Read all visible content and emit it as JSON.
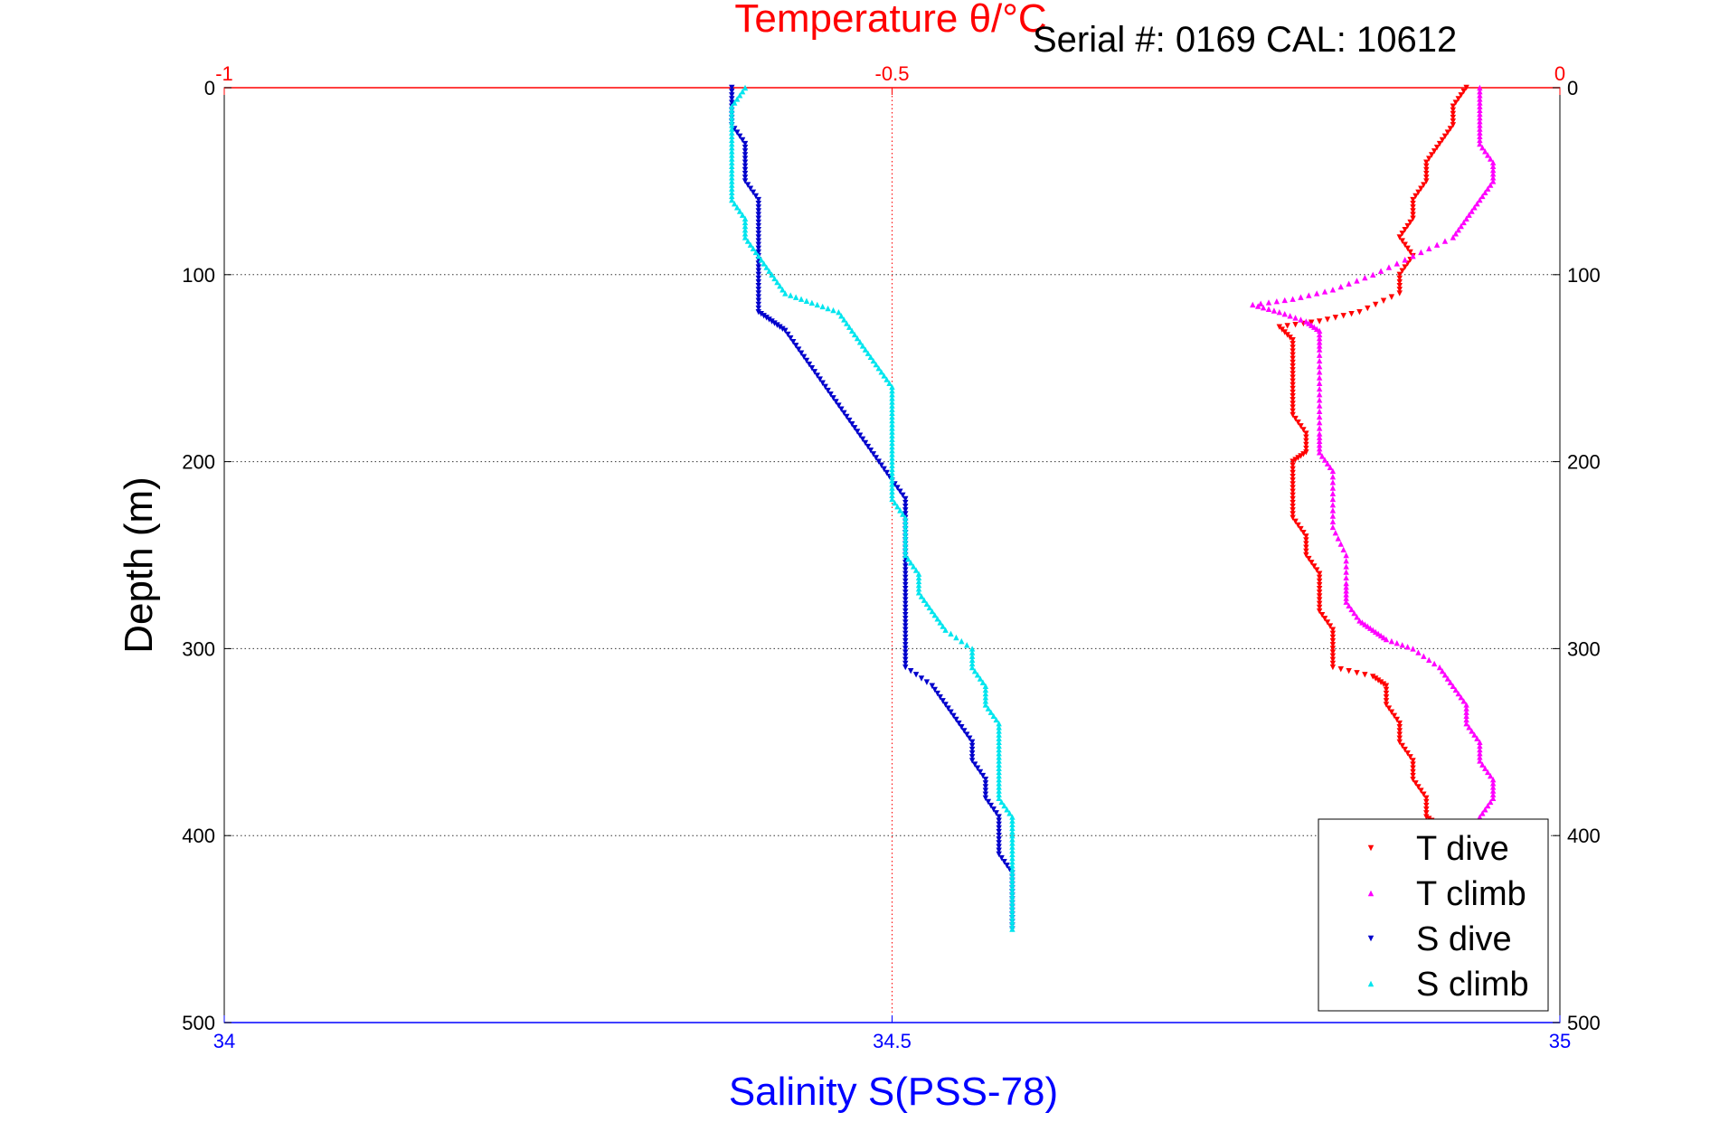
{
  "chart_data": {
    "type": "scatter",
    "title": "Temperature θ/°C",
    "subtitle": "Serial #: 0169 CAL: 10612",
    "xlabel": "Salinity S(PSS-78)",
    "ylabel": "Depth (m)",
    "x_bottom": {
      "label": "Salinity S(PSS-78)",
      "range": [
        34,
        35
      ],
      "ticks": [
        "34",
        "34.5",
        "35"
      ],
      "color": "#0000ff"
    },
    "x_top": {
      "label": "Temperature θ/°C",
      "range": [
        -1,
        0
      ],
      "ticks": [
        "-1",
        "-0.5",
        "0"
      ],
      "color": "#ff0000"
    },
    "y": {
      "label": "Depth (m)",
      "range": [
        0,
        500
      ],
      "reversed": true,
      "ticks": [
        "0",
        "100",
        "200",
        "300",
        "400",
        "500"
      ]
    },
    "grid": true,
    "legend_position": "bottom-right",
    "series": [
      {
        "name": "T dive",
        "axis": "top",
        "color": "#ff0000",
        "marker": "▾",
        "points": [
          [
            -0.07,
            0
          ],
          [
            -0.08,
            10
          ],
          [
            -0.08,
            20
          ],
          [
            -0.09,
            30
          ],
          [
            -0.1,
            40
          ],
          [
            -0.1,
            50
          ],
          [
            -0.11,
            60
          ],
          [
            -0.11,
            70
          ],
          [
            -0.12,
            80
          ],
          [
            -0.11,
            90
          ],
          [
            -0.12,
            100
          ],
          [
            -0.12,
            110
          ],
          [
            -0.15,
            120
          ],
          [
            -0.18,
            125
          ],
          [
            -0.21,
            128
          ],
          [
            -0.2,
            135
          ],
          [
            -0.2,
            145
          ],
          [
            -0.2,
            155
          ],
          [
            -0.2,
            165
          ],
          [
            -0.2,
            175
          ],
          [
            -0.19,
            185
          ],
          [
            -0.19,
            195
          ],
          [
            -0.2,
            200
          ],
          [
            -0.2,
            210
          ],
          [
            -0.2,
            220
          ],
          [
            -0.2,
            230
          ],
          [
            -0.19,
            240
          ],
          [
            -0.19,
            250
          ],
          [
            -0.18,
            260
          ],
          [
            -0.18,
            270
          ],
          [
            -0.18,
            280
          ],
          [
            -0.17,
            290
          ],
          [
            -0.17,
            300
          ],
          [
            -0.17,
            310
          ],
          [
            -0.14,
            315
          ],
          [
            -0.13,
            320
          ],
          [
            -0.13,
            330
          ],
          [
            -0.12,
            340
          ],
          [
            -0.12,
            350
          ],
          [
            -0.11,
            360
          ],
          [
            -0.11,
            370
          ],
          [
            -0.1,
            380
          ],
          [
            -0.1,
            390
          ],
          [
            -0.09,
            395
          ]
        ]
      },
      {
        "name": "T climb",
        "axis": "top",
        "color": "#ff00ff",
        "marker": "▴",
        "points": [
          [
            -0.06,
            0
          ],
          [
            -0.06,
            10
          ],
          [
            -0.06,
            20
          ],
          [
            -0.06,
            30
          ],
          [
            -0.05,
            40
          ],
          [
            -0.05,
            50
          ],
          [
            -0.06,
            60
          ],
          [
            -0.07,
            70
          ],
          [
            -0.08,
            80
          ],
          [
            -0.11,
            90
          ],
          [
            -0.14,
            100
          ],
          [
            -0.17,
            108
          ],
          [
            -0.2,
            113
          ],
          [
            -0.23,
            116
          ],
          [
            -0.21,
            120
          ],
          [
            -0.19,
            125
          ],
          [
            -0.18,
            130
          ],
          [
            -0.18,
            140
          ],
          [
            -0.18,
            155
          ],
          [
            -0.18,
            170
          ],
          [
            -0.18,
            185
          ],
          [
            -0.18,
            195
          ],
          [
            -0.17,
            205
          ],
          [
            -0.17,
            220
          ],
          [
            -0.17,
            235
          ],
          [
            -0.16,
            250
          ],
          [
            -0.16,
            265
          ],
          [
            -0.16,
            275
          ],
          [
            -0.15,
            285
          ],
          [
            -0.14,
            290
          ],
          [
            -0.13,
            295
          ],
          [
            -0.11,
            300
          ],
          [
            -0.09,
            310
          ],
          [
            -0.08,
            320
          ],
          [
            -0.07,
            330
          ],
          [
            -0.07,
            340
          ],
          [
            -0.06,
            350
          ],
          [
            -0.06,
            360
          ],
          [
            -0.05,
            370
          ],
          [
            -0.05,
            380
          ],
          [
            -0.06,
            390
          ]
        ]
      },
      {
        "name": "S dive",
        "axis": "bottom",
        "color": "#0000cc",
        "marker": "▾",
        "points": [
          [
            34.38,
            0
          ],
          [
            34.38,
            10
          ],
          [
            34.38,
            20
          ],
          [
            34.39,
            30
          ],
          [
            34.39,
            40
          ],
          [
            34.39,
            50
          ],
          [
            34.4,
            60
          ],
          [
            34.4,
            70
          ],
          [
            34.4,
            80
          ],
          [
            34.4,
            90
          ],
          [
            34.4,
            100
          ],
          [
            34.4,
            110
          ],
          [
            34.4,
            120
          ],
          [
            34.41,
            125
          ],
          [
            34.42,
            130
          ],
          [
            34.43,
            140
          ],
          [
            34.44,
            150
          ],
          [
            34.45,
            160
          ],
          [
            34.46,
            170
          ],
          [
            34.47,
            180
          ],
          [
            34.48,
            190
          ],
          [
            34.49,
            200
          ],
          [
            34.5,
            210
          ],
          [
            34.51,
            220
          ],
          [
            34.51,
            230
          ],
          [
            34.51,
            240
          ],
          [
            34.51,
            250
          ],
          [
            34.51,
            260
          ],
          [
            34.51,
            270
          ],
          [
            34.51,
            280
          ],
          [
            34.51,
            290
          ],
          [
            34.51,
            300
          ],
          [
            34.51,
            310
          ],
          [
            34.53,
            320
          ],
          [
            34.54,
            330
          ],
          [
            34.55,
            340
          ],
          [
            34.56,
            350
          ],
          [
            34.56,
            360
          ],
          [
            34.57,
            370
          ],
          [
            34.57,
            380
          ],
          [
            34.58,
            390
          ],
          [
            34.58,
            400
          ],
          [
            34.58,
            410
          ],
          [
            34.59,
            420
          ],
          [
            34.59,
            430
          ],
          [
            34.59,
            440
          ],
          [
            34.59,
            450
          ]
        ]
      },
      {
        "name": "S climb",
        "axis": "bottom",
        "color": "#00e5ee",
        "marker": "▴",
        "points": [
          [
            34.39,
            0
          ],
          [
            34.38,
            10
          ],
          [
            34.38,
            20
          ],
          [
            34.38,
            30
          ],
          [
            34.38,
            40
          ],
          [
            34.38,
            50
          ],
          [
            34.38,
            60
          ],
          [
            34.39,
            70
          ],
          [
            34.39,
            80
          ],
          [
            34.4,
            90
          ],
          [
            34.41,
            100
          ],
          [
            34.42,
            110
          ],
          [
            34.44,
            115
          ],
          [
            34.46,
            120
          ],
          [
            34.47,
            130
          ],
          [
            34.48,
            140
          ],
          [
            34.49,
            150
          ],
          [
            34.5,
            160
          ],
          [
            34.5,
            170
          ],
          [
            34.5,
            180
          ],
          [
            34.5,
            190
          ],
          [
            34.5,
            200
          ],
          [
            34.5,
            210
          ],
          [
            34.5,
            220
          ],
          [
            34.51,
            230
          ],
          [
            34.51,
            240
          ],
          [
            34.51,
            250
          ],
          [
            34.52,
            260
          ],
          [
            34.52,
            270
          ],
          [
            34.53,
            280
          ],
          [
            34.54,
            290
          ],
          [
            34.56,
            300
          ],
          [
            34.56,
            310
          ],
          [
            34.57,
            320
          ],
          [
            34.57,
            330
          ],
          [
            34.58,
            340
          ],
          [
            34.58,
            350
          ],
          [
            34.58,
            360
          ],
          [
            34.58,
            370
          ],
          [
            34.58,
            380
          ],
          [
            34.59,
            390
          ],
          [
            34.59,
            400
          ],
          [
            34.59,
            410
          ],
          [
            34.59,
            420
          ],
          [
            34.59,
            430
          ],
          [
            34.59,
            440
          ],
          [
            34.59,
            450
          ]
        ]
      }
    ]
  }
}
